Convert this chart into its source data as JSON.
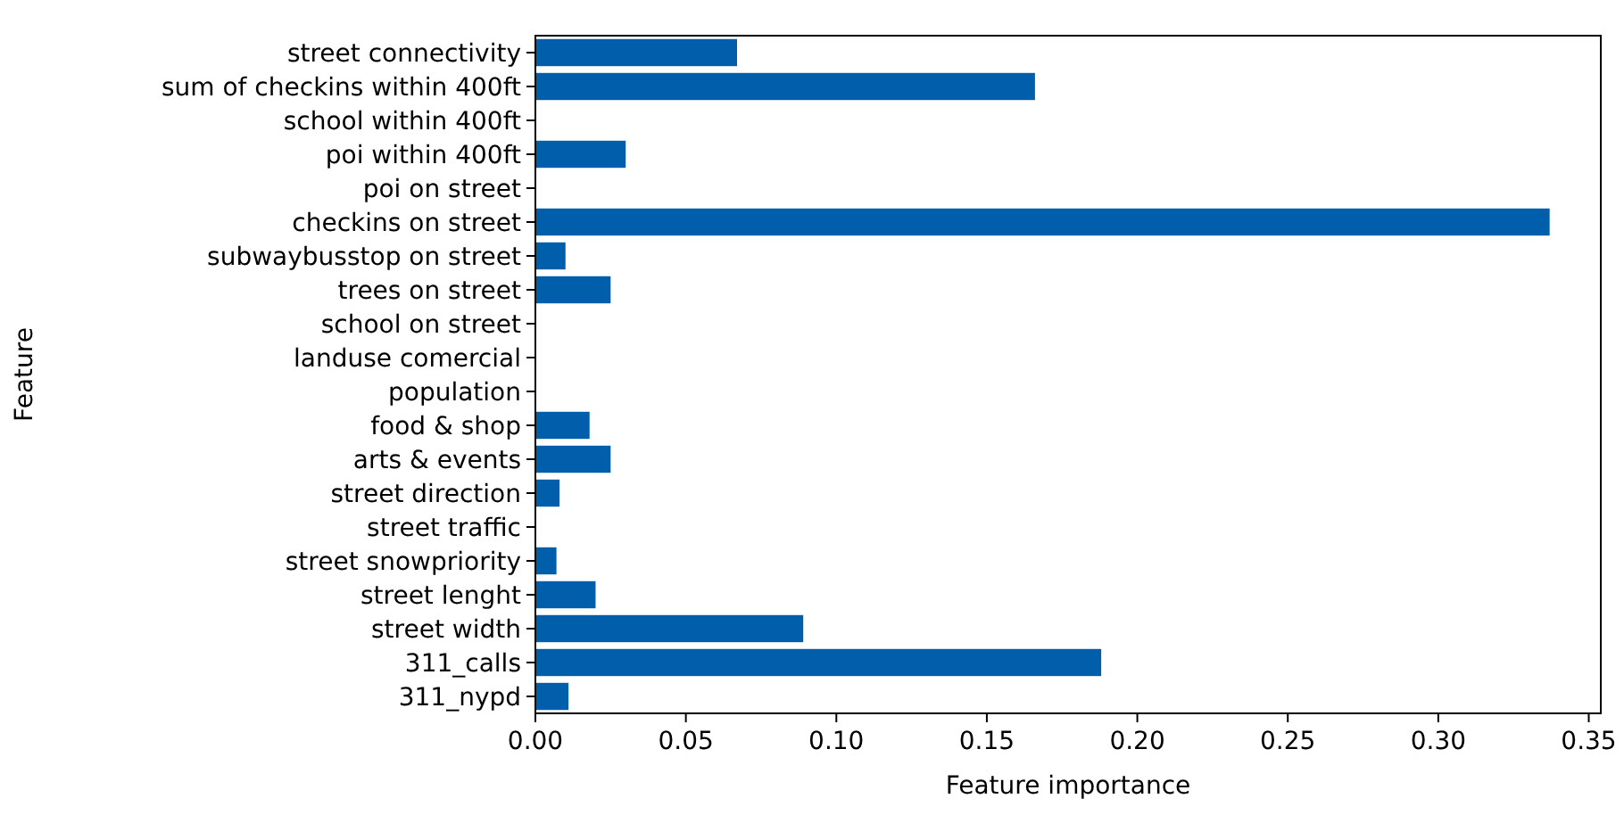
{
  "chart_data": {
    "type": "bar",
    "orientation": "horizontal",
    "xlabel": "Feature importance",
    "ylabel": "Feature",
    "categories": [
      "street connectivity",
      "sum of checkins within 400ft",
      "school within 400ft",
      "poi within 400ft",
      "poi on street",
      "checkins on street",
      "subwaybusstop on street",
      "trees on street",
      "school on street",
      "landuse comercial",
      "population",
      "food & shop",
      "arts & events",
      "street direction",
      "street traffic",
      "street snowpriority",
      "street lenght",
      "street width",
      "311_calls",
      "311_nypd"
    ],
    "values": [
      0.067,
      0.166,
      0,
      0.03,
      0,
      0.337,
      0.01,
      0.025,
      0,
      0,
      0,
      0.018,
      0.025,
      0.008,
      0,
      0.007,
      0.02,
      0.089,
      0.188,
      0.011
    ],
    "color": "#005eaa",
    "xlim": [
      0,
      0.354
    ],
    "xticks": [
      {
        "value": 0,
        "label": "0.00"
      },
      {
        "value": 0.05,
        "label": "0.05"
      },
      {
        "value": 0.1,
        "label": "0.10"
      },
      {
        "value": 0.15,
        "label": "0.15"
      },
      {
        "value": 0.2,
        "label": "0.20"
      },
      {
        "value": 0.25,
        "label": "0.25"
      },
      {
        "value": 0.3,
        "label": "0.30"
      },
      {
        "value": 0.35,
        "label": "0.35"
      }
    ]
  }
}
